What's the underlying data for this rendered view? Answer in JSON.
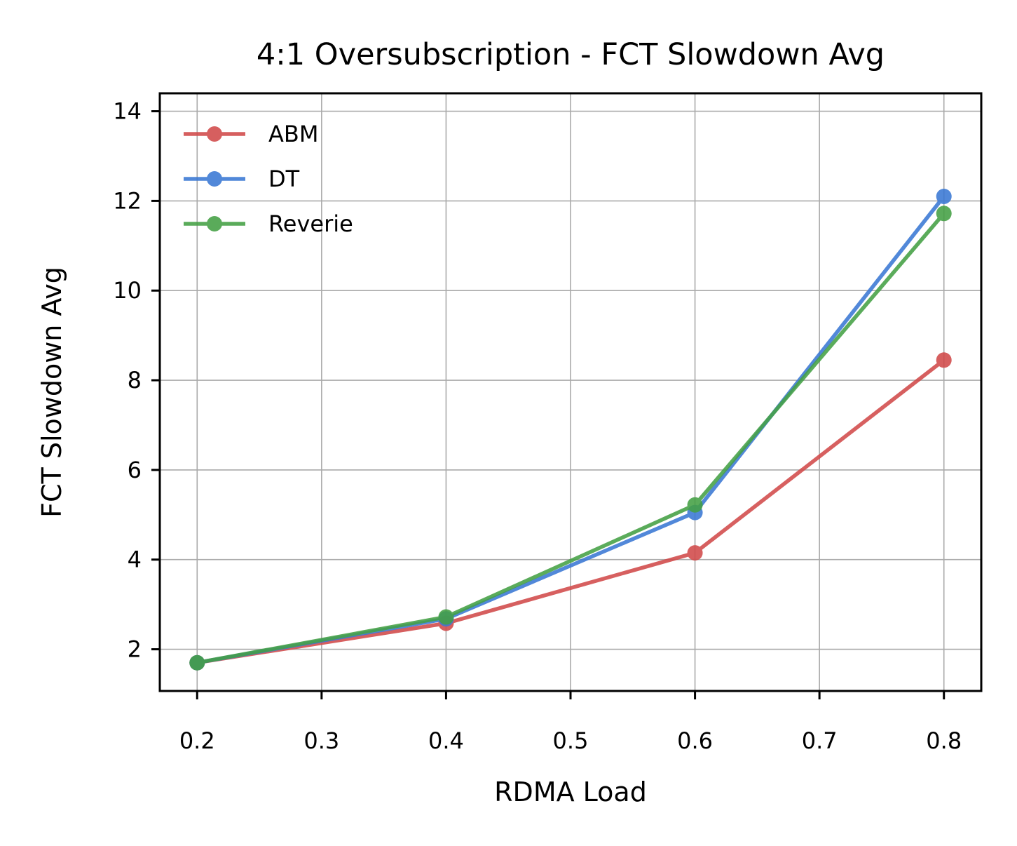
{
  "chart_data": {
    "type": "line",
    "title": "4:1 Oversubscription - FCT Slowdown Avg",
    "xlabel": "RDMA Load",
    "ylabel": "FCT Slowdown Avg",
    "xlim": [
      0.17,
      0.83
    ],
    "ylim": [
      1.07,
      14.4
    ],
    "xticks": [
      0.2,
      0.3,
      0.4,
      0.5,
      0.6,
      0.7,
      0.8
    ],
    "xtick_labels": [
      "0.2",
      "0.3",
      "0.4",
      "0.5",
      "0.6",
      "0.7",
      "0.8"
    ],
    "yticks": [
      2,
      4,
      6,
      8,
      10,
      12,
      14
    ],
    "ytick_labels": [
      "2",
      "4",
      "6",
      "8",
      "10",
      "12",
      "14"
    ],
    "grid": true,
    "legend_position": "top-left",
    "x": [
      0.2,
      0.4,
      0.6,
      0.8
    ],
    "series": [
      {
        "name": "ABM",
        "color": "#d14a4a",
        "values": [
          1.7,
          2.58,
          4.15,
          8.45
        ]
      },
      {
        "name": "DT",
        "color": "#3a78d4",
        "values": [
          1.7,
          2.68,
          5.05,
          12.1
        ]
      },
      {
        "name": "Reverie",
        "color": "#44a044",
        "values": [
          1.7,
          2.72,
          5.22,
          11.72
        ]
      }
    ]
  }
}
